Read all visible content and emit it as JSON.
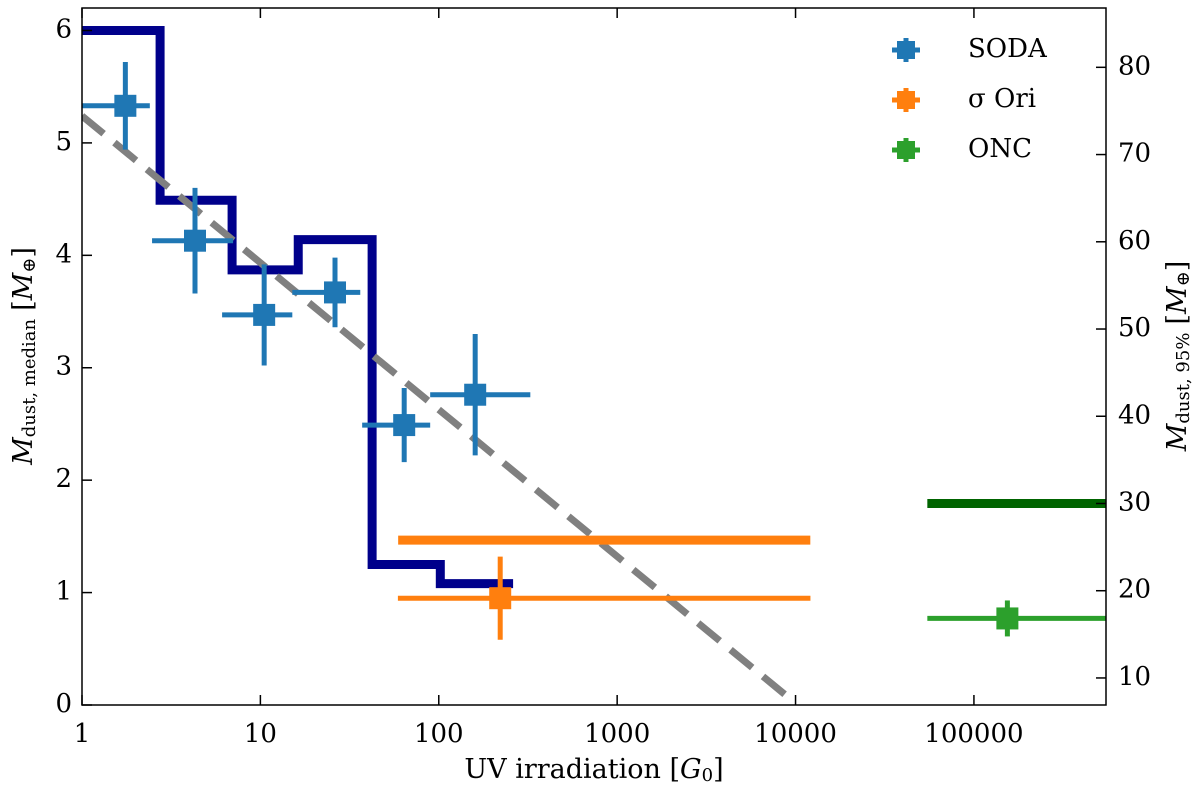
{
  "chart_data": {
    "type": "errorbar",
    "xscale": "log",
    "xlim": [
      1,
      550000
    ],
    "xticks": [
      1,
      10,
      100,
      1000,
      10000,
      100000
    ],
    "ylim": [
      0,
      6.2
    ],
    "yticks": [
      0,
      1,
      2,
      3,
      4,
      5,
      6
    ],
    "y2lim": [
      6.9,
      86.8
    ],
    "y2ticks": [
      10,
      20,
      30,
      40,
      50,
      60,
      70,
      80
    ],
    "xlabel": [
      "UV irradiation [",
      "G",
      "0",
      "]"
    ],
    "ylabel": [
      "M",
      "dust, median",
      "[",
      "M",
      "⊕",
      "]"
    ],
    "y2label": [
      "M",
      "dust, 95%",
      "[",
      "M",
      "⊕",
      "]"
    ],
    "legend": "upper right",
    "series": [
      {
        "name": "SODA",
        "color": "#1f77b4",
        "x": [
          1.75,
          4.3,
          10.5,
          26.2,
          64,
          160
        ],
        "xerr_minus": [
          0.75,
          1.83,
          4.4,
          11.1,
          26.8,
          70.5
        ],
        "xerr_plus": [
          0.65,
          2.73,
          4.6,
          10.1,
          25.5,
          166
        ],
        "values": [
          5.33,
          4.13,
          3.47,
          3.67,
          2.49,
          2.76
        ],
        "yerr": [
          0.39,
          0.47,
          0.45,
          0.31,
          0.33,
          0.54
        ]
      },
      {
        "name": "σ Ori",
        "color": "#ff7f0e",
        "x": [
          221
        ],
        "xerr_minus": [
          162
        ],
        "xerr_plus": [
          11900
        ],
        "values": [
          0.95
        ],
        "yerr": [
          0.37
        ]
      },
      {
        "name": "ONC",
        "color": "#2ca02c",
        "x": [
          154000
        ],
        "xerr_minus": [
          99200
        ],
        "xerr_plus": [
          846000
        ],
        "values": [
          0.77
        ],
        "yerr": [
          0.16
        ]
      }
    ],
    "lines": [
      {
        "type": "step",
        "color": "#00008b",
        "bins": [
          1,
          2.74,
          6.94,
          16.3,
          42.3,
          102,
          261
        ],
        "values": [
          6.0,
          4.49,
          3.87,
          4.14,
          1.25,
          1.08
        ]
      },
      {
        "type": "dashed",
        "color": "#808080",
        "x": [
          1,
          8770
        ],
        "values": [
          5.24,
          0.09
        ]
      },
      {
        "type": "hline",
        "color": "#ff7f0e",
        "axis": "y2",
        "xmin": 59.2,
        "xmax": 12100,
        "value": 25.8
      },
      {
        "type": "hline",
        "color": "#006400",
        "axis": "y2",
        "xmin": 54800,
        "xmax": 1000000,
        "value": 30
      }
    ]
  }
}
